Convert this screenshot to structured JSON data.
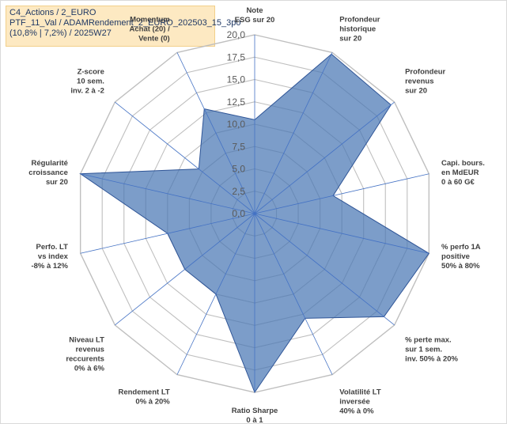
{
  "info": {
    "line1": "C4_Actions / 2_EURO",
    "line2": "PTF_11_Val / ADAMRendement_2_EURO_202503_15_3p0",
    "line3": "(10,8% | 7,2%) / 2025W27"
  },
  "chart_data": {
    "type": "radar",
    "rmax": 20,
    "rticks": [
      "0,0",
      "2,5",
      "5,0",
      "7,5",
      "10,0",
      "12,5",
      "15,0",
      "17,5",
      "20,0"
    ],
    "grid": true,
    "colors": {
      "fill": "#4a77b4",
      "fill_opacity": 0.72,
      "stroke": "#2f5597",
      "grid": "#bfbfbf",
      "spoke": "#4472c4"
    },
    "axes": [
      {
        "label": [
          "Note",
          "ESG sur 20"
        ],
        "value": 10.5
      },
      {
        "label": [
          "Profondeur",
          "historique",
          "sur 20"
        ],
        "value": 19.8
      },
      {
        "label": [
          "Profondeur",
          "revenus",
          "sur 20"
        ],
        "value": 19.5
      },
      {
        "label": [
          "Capi. bours.",
          "en MdEUR",
          "0 à 60 G€"
        ],
        "value": 9.0
      },
      {
        "label": [
          "% perfo 1A",
          "positive",
          "50% à 80%"
        ],
        "value": 20.0
      },
      {
        "label": [
          "% perte max.",
          "sur 1 sem.",
          "inv. 50% à 20%"
        ],
        "value": 18.5
      },
      {
        "label": [
          "Volatilité LT",
          "inversée",
          "40% à 0%"
        ],
        "value": 13.0
      },
      {
        "label": [
          "Ratio Sharpe",
          "0 à 1"
        ],
        "value": 20.0
      },
      {
        "label": [
          "Rendement LT",
          "0% à 20%"
        ],
        "value": 10.0
      },
      {
        "label": [
          "Niveau LT",
          "revenus",
          "reccurents",
          "0% à 6%"
        ],
        "value": 10.0
      },
      {
        "label": [
          "Perfo. LT",
          "vs index",
          "-8% à 12%"
        ],
        "value": 10.0
      },
      {
        "label": [
          "Régularité",
          "croissance",
          "sur 20"
        ],
        "value": 20.0
      },
      {
        "label": [
          "Z-score",
          "10 sem.",
          "inv. 2 à -2"
        ],
        "value": 8.0
      },
      {
        "label": [
          "Momentum",
          "Achat (20) /",
          "Vente (0)"
        ],
        "value": 13.0
      }
    ]
  }
}
